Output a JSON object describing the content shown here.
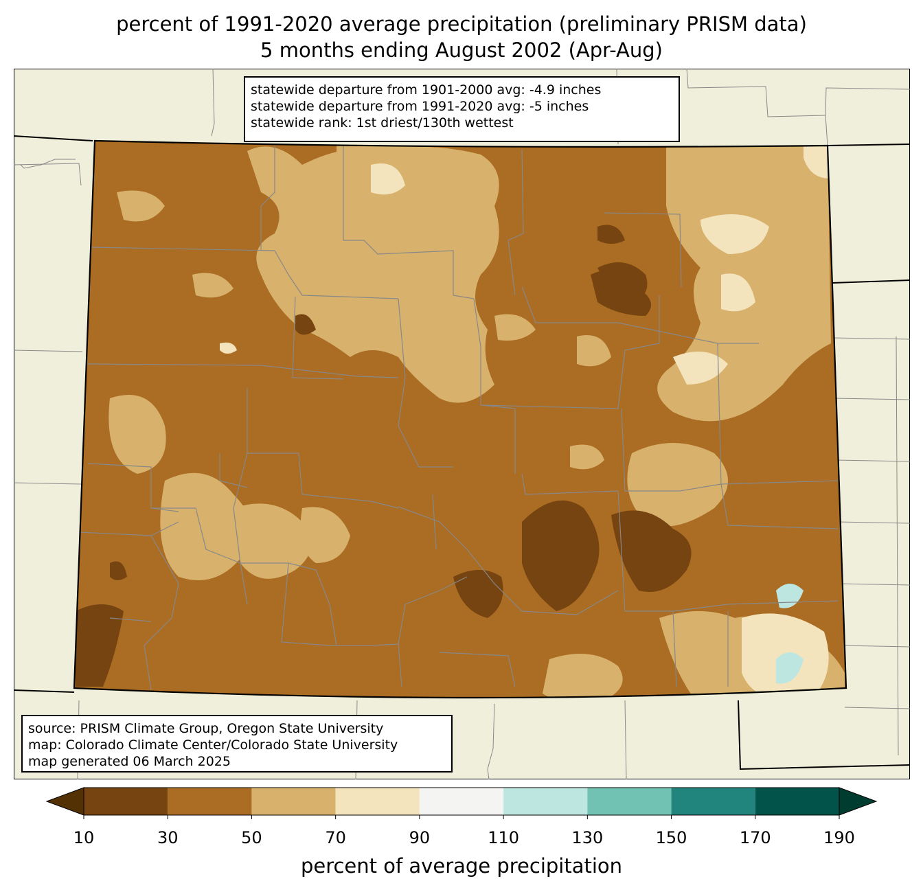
{
  "title_line1": "percent of 1991-2020 average precipitation (preliminary PRISM data)",
  "title_line2": "5 months ending August 2002 (Apr-Aug)",
  "stats": {
    "line1": "statewide departure from 1901-2000 avg: -4.9 inches",
    "line2": "statewide departure from 1991-2020 avg: -5 inches",
    "line3": "statewide rank: 1st driest/130th wettest"
  },
  "source": {
    "line1": "source: PRISM Climate Group, Oregon State University",
    "line2": "map: Colorado Climate Center/Colorado State University",
    "line3": "map generated 06 March 2025"
  },
  "colorbar": {
    "label": "percent of average precipitation",
    "ticks": [
      "10",
      "30",
      "50",
      "70",
      "90",
      "110",
      "130",
      "150",
      "170",
      "190"
    ],
    "colors": [
      "#754410",
      "#ab6c23",
      "#d8b26c",
      "#f3e4bd",
      "#f4f5f3",
      "#bde6e1",
      "#72c2b3",
      "#22857d",
      "#02544a"
    ],
    "under_color": "#543005",
    "over_color": "#003c30"
  },
  "colors": {
    "background_land": "#f0efdc",
    "state_fill": "#ab6c23"
  }
}
